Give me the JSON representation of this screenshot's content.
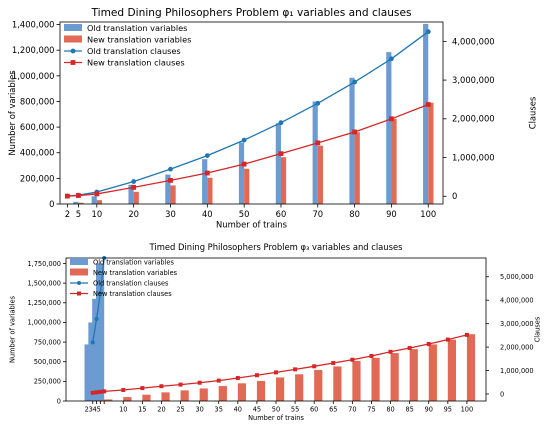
{
  "chart_data": [
    {
      "type": "bar",
      "title": "Timed Dining Philosophers Problem φ₁ variables and clauses",
      "xlabel": "Number of trains",
      "ylabel": "Number of variables",
      "y2label": "Clauses",
      "categories": [
        "2",
        "5",
        "10",
        "20",
        "30",
        "40",
        "50",
        "60",
        "70",
        "80",
        "90",
        "100"
      ],
      "x": [
        2,
        5,
        10,
        20,
        30,
        40,
        50,
        60,
        70,
        80,
        90,
        100
      ],
      "xlim": [
        0,
        104
      ],
      "ylim": [
        0,
        1420000
      ],
      "y2lim": [
        -200000,
        4500000
      ],
      "yticks": [
        0,
        200000,
        400000,
        600000,
        800000,
        1000000,
        1200000,
        1400000
      ],
      "yticklabels": [
        "0",
        "200,000",
        "400,000",
        "600,000",
        "800,000",
        "1,000,000",
        "1,200,000",
        "1,400,000"
      ],
      "y2ticks": [
        0,
        1000000,
        2000000,
        3000000,
        4000000
      ],
      "y2ticklabels": [
        "0",
        "1,000,000",
        "2,000,000",
        "3,000,000",
        "4,000,000"
      ],
      "legend": "top-left",
      "bar_series": [
        {
          "name": "Old translation variables",
          "color": "#6b9bd1",
          "values": [
            3000,
            17000,
            60000,
            150000,
            230000,
            350000,
            480000,
            630000,
            800000,
            985000,
            1185000,
            1405000
          ]
        },
        {
          "name": "New translation variables",
          "color": "#e06a55",
          "values": [
            2500,
            10000,
            30000,
            95000,
            145000,
            205000,
            275000,
            365000,
            455000,
            560000,
            665000,
            790000
          ]
        }
      ],
      "line_series": [
        {
          "name": "Old translation clauses",
          "color": "#1f77b4",
          "marker": "circle",
          "values": [
            5000,
            30000,
            110000,
            380000,
            700000,
            1050000,
            1450000,
            1900000,
            2400000,
            2950000,
            3550000,
            4250000
          ]
        },
        {
          "name": "New translation clauses",
          "color": "#d62728",
          "marker": "square",
          "values": [
            3000,
            18000,
            60000,
            230000,
            410000,
            600000,
            830000,
            1100000,
            1380000,
            1660000,
            2000000,
            2370000
          ]
        }
      ]
    },
    {
      "type": "bar",
      "title": "Timed Dining Philosophers Problem φ₃ variables and clauses",
      "xlabel": "Number of trains",
      "ylabel": "Number of variables",
      "y2label": "Clauses",
      "categories": [
        "2",
        "3",
        "4",
        "5",
        "10",
        "15",
        "20",
        "25",
        "30",
        "35",
        "40",
        "45",
        "50",
        "55",
        "60",
        "65",
        "70",
        "75",
        "80",
        "85",
        "90",
        "95",
        "100"
      ],
      "x": [
        2,
        3,
        4,
        5,
        10,
        15,
        20,
        25,
        30,
        35,
        40,
        45,
        50,
        55,
        60,
        65,
        70,
        75,
        80,
        85,
        90,
        95,
        100
      ],
      "xlim": [
        -5,
        105
      ],
      "ylim": [
        0,
        1820000
      ],
      "y2lim": [
        -300000,
        5800000
      ],
      "yticks": [
        0,
        250000,
        500000,
        750000,
        1000000,
        1250000,
        1500000,
        1750000
      ],
      "yticklabels": [
        "0",
        "250,000",
        "500,000",
        "750,000",
        "1,000,000",
        "1,250,000",
        "1,500,000",
        "1,750,000"
      ],
      "y2ticks": [
        0,
        1000000,
        2000000,
        3000000,
        4000000,
        5000000
      ],
      "y2ticklabels": [
        "0",
        "1,000,000",
        "2,000,000",
        "3,000,000",
        "4,000,000",
        "5,000,000"
      ],
      "legend": "top-left",
      "bar_series": [
        {
          "name": "Old translation variables",
          "color": "#6b9bd1",
          "values": [
            720000,
            1000000,
            1300000,
            1750000,
            null,
            null,
            null,
            null,
            null,
            null,
            null,
            null,
            null,
            null,
            null,
            null,
            null,
            null,
            null,
            null,
            null,
            null,
            null
          ]
        },
        {
          "name": "New translation variables",
          "color": "#e06a55",
          "values": [
            4000,
            8000,
            12000,
            20000,
            50000,
            80000,
            110000,
            135000,
            160000,
            190000,
            225000,
            255000,
            300000,
            340000,
            395000,
            440000,
            510000,
            550000,
            610000,
            660000,
            720000,
            780000,
            850000
          ]
        }
      ],
      "line_series": [
        {
          "name": "Old translation clauses",
          "color": "#1f77b4",
          "marker": "circle",
          "values": [
            2200000,
            3200000,
            4300000,
            5800000,
            null,
            null,
            null,
            null,
            null,
            null,
            null,
            null,
            null,
            null,
            null,
            null,
            null,
            null,
            null,
            null,
            null,
            null,
            null
          ]
        },
        {
          "name": "New translation clauses",
          "color": "#d62728",
          "marker": "square",
          "values": [
            50000,
            70000,
            90000,
            110000,
            170000,
            250000,
            330000,
            400000,
            480000,
            570000,
            680000,
            800000,
            920000,
            1050000,
            1180000,
            1320000,
            1460000,
            1620000,
            1800000,
            1960000,
            2130000,
            2320000,
            2520000
          ]
        }
      ]
    }
  ]
}
